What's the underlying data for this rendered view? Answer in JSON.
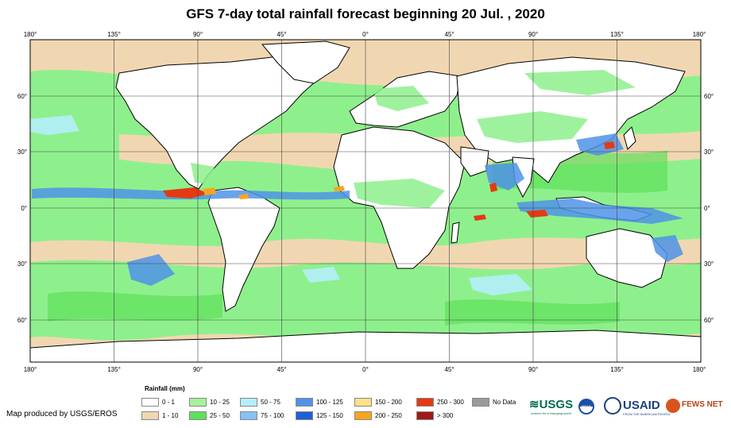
{
  "title": "GFS 7-day total rainfall forecast beginning 20 Jul. , 2020",
  "map": {
    "lon_labels": [
      "180°",
      "135°",
      "90°",
      "45°",
      "0°",
      "45°",
      "90°",
      "135°",
      "180°"
    ],
    "lat_labels": [
      "60°",
      "30°",
      "0°",
      "30°",
      "60°"
    ],
    "colors": {
      "ocean_light": "#f1d7b1",
      "land": "#ffffff",
      "green": "#8ef08c",
      "green_dark": "#5ee05a",
      "blue_light": "#b4eefa",
      "blue": "#4f93e8",
      "red": "#e33a14",
      "orange": "#f7a51f"
    }
  },
  "legend": {
    "title": "Rainfall (mm)",
    "items": [
      {
        "label": "0 - 1",
        "color": "#ffffff"
      },
      {
        "label": "1 - 10",
        "color": "#f1d7b1"
      },
      {
        "label": "10 - 25",
        "color": "#a6f29c"
      },
      {
        "label": "25 - 50",
        "color": "#5ee05a"
      },
      {
        "label": "50 - 75",
        "color": "#b4eefa"
      },
      {
        "label": "75 - 100",
        "color": "#86c2f5"
      },
      {
        "label": "100 - 125",
        "color": "#4f93e8"
      },
      {
        "label": "125 - 150",
        "color": "#1f5fd8"
      },
      {
        "label": "150 - 200",
        "color": "#ffe188"
      },
      {
        "label": "200 - 250",
        "color": "#f7a51f"
      },
      {
        "label": "250 - 300",
        "color": "#e33a14"
      },
      {
        "label": "> 300",
        "color": "#a01818"
      },
      {
        "label": "No Data",
        "color": "#9a9a9a"
      }
    ]
  },
  "credit": "Map produced by USGS/EROS",
  "logos": {
    "usgs": "≋USGS",
    "usgs_tagline": "science for a changing world",
    "noaa": "NOAA",
    "usaid": "USAID",
    "usaid_tagline": "FROM THE AMERICAN PEOPLE",
    "fewsnet": "FEWS NET"
  }
}
